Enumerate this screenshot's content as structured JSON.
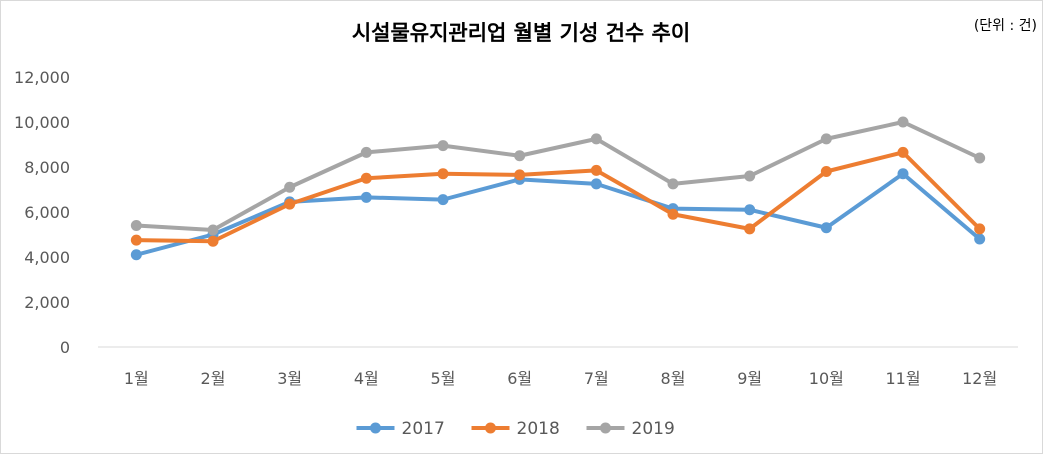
{
  "chart_data": {
    "type": "line",
    "title": "시설물유지관리업 월별 기성 건수 추이",
    "unit_label": "(단위 : 건)",
    "categories": [
      "1월",
      "2월",
      "3월",
      "4월",
      "5월",
      "6월",
      "7월",
      "8월",
      "9월",
      "10월",
      "11월",
      "12월"
    ],
    "y_ticks": [
      "0",
      "2,000",
      "4,000",
      "6,000",
      "8,000",
      "10,000",
      "12,000"
    ],
    "ylim": [
      0,
      12000
    ],
    "grid": false,
    "legend_position": "bottom",
    "series": [
      {
        "name": "2017",
        "color": "#5B9BD5",
        "values": [
          4100,
          5000,
          6450,
          6650,
          6550,
          7450,
          7250,
          6150,
          6100,
          5300,
          7700,
          4800
        ]
      },
      {
        "name": "2018",
        "color": "#ED7D31",
        "values": [
          4750,
          4700,
          6350,
          7500,
          7700,
          7650,
          7850,
          5900,
          5250,
          7800,
          8650,
          5250
        ]
      },
      {
        "name": "2019",
        "color": "#A5A5A5",
        "values": [
          5400,
          5200,
          7100,
          8650,
          8950,
          8500,
          9250,
          7250,
          7600,
          9250,
          10000,
          8400
        ]
      }
    ]
  }
}
